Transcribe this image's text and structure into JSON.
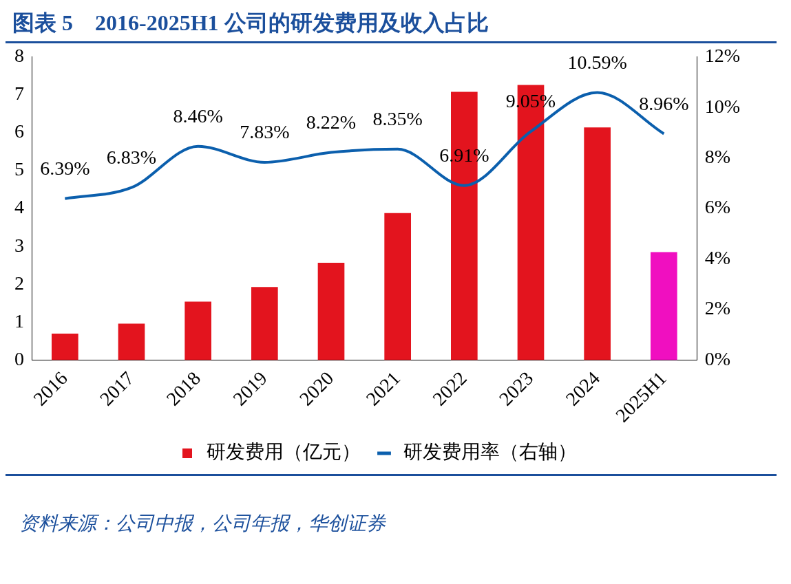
{
  "chart_data": {
    "type": "bar",
    "title": "图表 5　2016-2025H1 公司的研发费用及收入占比",
    "categories": [
      "2016",
      "2017",
      "2018",
      "2019",
      "2020",
      "2021",
      "2022",
      "2023",
      "2024",
      "2025H1"
    ],
    "series": [
      {
        "name": "研发费用（亿元）",
        "color": "#e3141e",
        "colors": [
          "#e3141e",
          "#e3141e",
          "#e3141e",
          "#e3141e",
          "#e3141e",
          "#e3141e",
          "#e3141e",
          "#e3141e",
          "#e3141e",
          "#f00fc0"
        ],
        "values": [
          0.7,
          0.96,
          1.54,
          1.93,
          2.57,
          3.88,
          7.08,
          7.26,
          6.14,
          2.85
        ]
      },
      {
        "name": "研发费用率（右轴）",
        "type": "line",
        "axis": "y2",
        "color": "#0b5fad",
        "values": [
          6.39,
          6.83,
          8.46,
          7.83,
          8.22,
          8.35,
          6.91,
          9.05,
          10.59,
          8.96
        ],
        "value_labels": [
          "6.39%",
          "6.83%",
          "8.46%",
          "7.83%",
          "8.22%",
          "8.35%",
          "6.91%",
          "9.05%",
          "10.59%",
          "8.96%"
        ]
      }
    ],
    "ylim": [
      0,
      8
    ],
    "yticks": [
      0,
      1,
      2,
      3,
      4,
      5,
      6,
      7,
      8
    ],
    "y2lim": [
      0,
      12
    ],
    "y2ticks": [
      {
        "value": 0,
        "label": "0%"
      },
      {
        "value": 2,
        "label": "2%"
      },
      {
        "value": 4,
        "label": "4%"
      },
      {
        "value": 6,
        "label": "6%"
      },
      {
        "value": 8,
        "label": "8%"
      },
      {
        "value": 10,
        "label": "10%"
      },
      {
        "value": 12,
        "label": "12%"
      }
    ],
    "grid": false,
    "legend": "bottom",
    "marker": "none",
    "annotations": [
      "资料来源：公司中报，公司年报，华创证券"
    ]
  }
}
